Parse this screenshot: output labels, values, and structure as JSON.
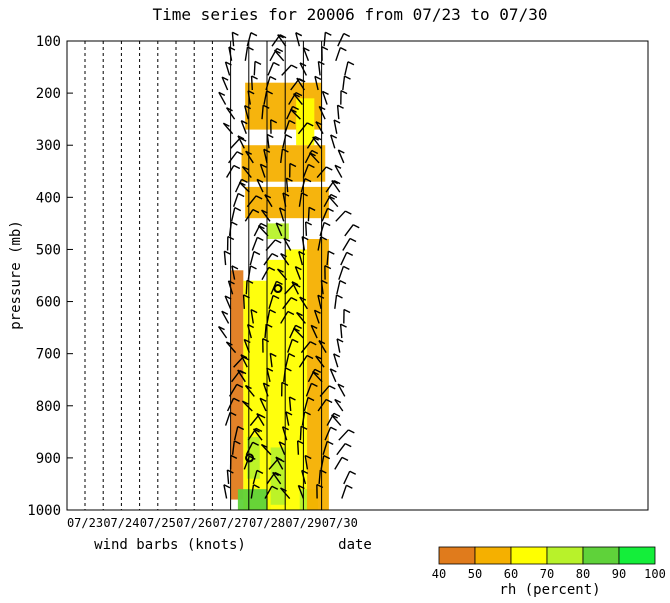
{
  "chart_data": {
    "type": "heatmap",
    "title": "Time series for 20006 from 07/23 to 07/30",
    "ylabel": "pressure (mb)",
    "xlabel": "date",
    "xlabel2": "wind barbs (knots)",
    "y_ticks": [
      100,
      200,
      300,
      400,
      500,
      600,
      700,
      800,
      900,
      1000
    ],
    "ylim": [
      1000,
      100
    ],
    "x_ticks": [
      "07/23",
      "07/24",
      "07/25",
      "07/26",
      "07/27",
      "07/28",
      "07/29",
      "07/30"
    ],
    "colorbar": {
      "label": "rh (percent)",
      "levels": [
        40,
        50,
        60,
        70,
        80,
        90,
        100
      ],
      "colors": [
        "#e07b1c",
        "#f5b000",
        "#ffff00",
        "#b8f22a",
        "#5fd23a",
        "#14ee3a"
      ]
    },
    "markers": [
      {
        "date": 4.52,
        "pressure": 900
      },
      {
        "date": 5.3,
        "pressure": 575
      }
    ],
    "rh_bands": [
      {
        "date_start": 4.0,
        "date_end": 4.35,
        "p_top": 540,
        "p_bot": 980,
        "rh": 45
      },
      {
        "date_start": 4.35,
        "date_end": 5.0,
        "p_top": 560,
        "p_bot": 1000,
        "rh": 62
      },
      {
        "date_start": 4.45,
        "date_end": 4.8,
        "p_top": 860,
        "p_bot": 940,
        "rh": 78
      },
      {
        "date_start": 4.2,
        "date_end": 5.1,
        "p_top": 960,
        "p_bot": 1000,
        "rh": 80
      },
      {
        "date_start": 5.0,
        "date_end": 5.5,
        "p_top": 520,
        "p_bot": 1000,
        "rh": 68
      },
      {
        "date_start": 5.1,
        "date_end": 5.6,
        "p_top": 880,
        "p_bot": 990,
        "rh": 78
      },
      {
        "date_start": 5.5,
        "date_end": 6.1,
        "p_top": 500,
        "p_bot": 1000,
        "rh": 62
      },
      {
        "date_start": 5.9,
        "date_end": 6.4,
        "p_top": 960,
        "p_bot": 1000,
        "rh": 78
      },
      {
        "date_start": 6.1,
        "date_end": 6.7,
        "p_top": 480,
        "p_bot": 1000,
        "rh": 50
      },
      {
        "date_start": 4.4,
        "date_end": 6.5,
        "p_top": 180,
        "p_bot": 270,
        "rh": 50
      },
      {
        "date_start": 5.8,
        "date_end": 6.3,
        "p_top": 210,
        "p_bot": 300,
        "rh": 68
      },
      {
        "date_start": 4.3,
        "date_end": 6.6,
        "p_top": 300,
        "p_bot": 370,
        "rh": 55
      },
      {
        "date_start": 4.4,
        "date_end": 6.7,
        "p_top": 380,
        "p_bot": 440,
        "rh": 58
      },
      {
        "date_start": 5.0,
        "date_end": 5.6,
        "p_top": 450,
        "p_bot": 480,
        "rh": 75
      }
    ]
  },
  "colors": {
    "axis": "#000000",
    "barb": "#000000"
  }
}
